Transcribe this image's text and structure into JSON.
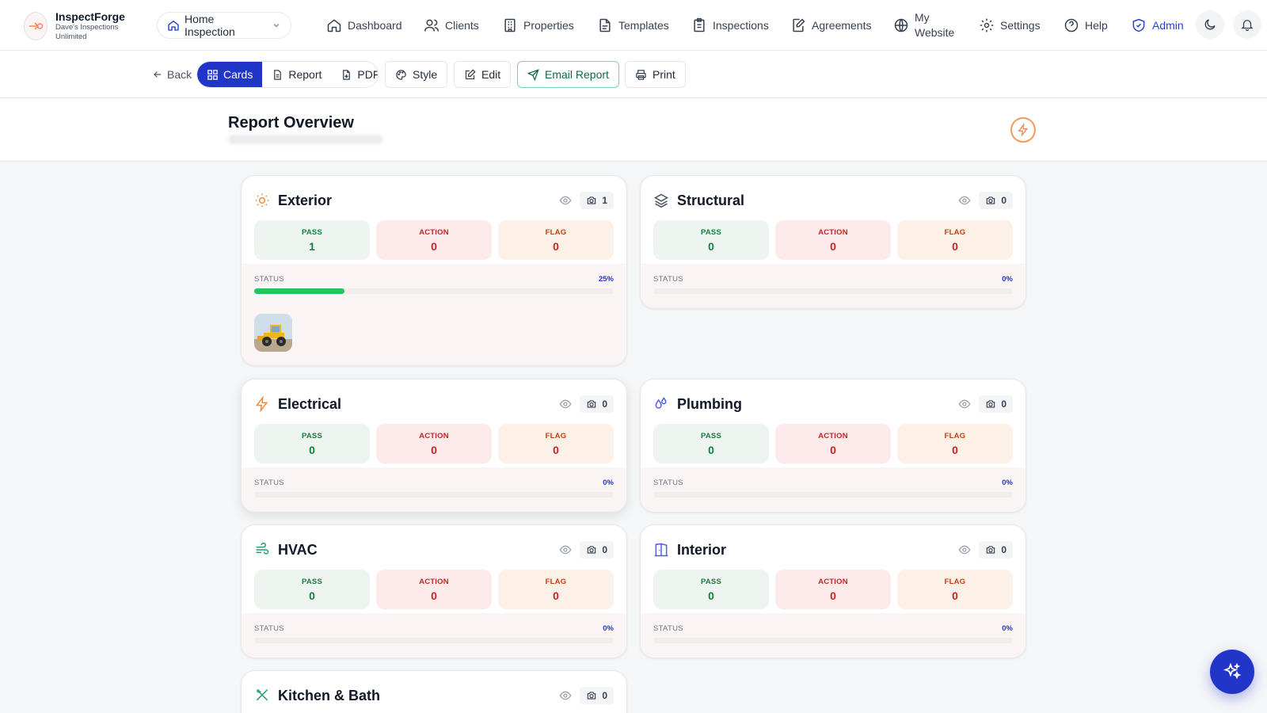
{
  "brand": {
    "name": "InspectForge",
    "subtitle": "Dave's Inspections Unlimited"
  },
  "scope_select": {
    "value": "Home Inspection"
  },
  "nav": {
    "dashboard": "Dashboard",
    "clients": "Clients",
    "properties": "Properties",
    "templates": "Templates",
    "inspections": "Inspections",
    "agreements": "Agreements",
    "my_website_line1": "My",
    "my_website_line2": "Website",
    "settings": "Settings",
    "help": "Help",
    "admin": "Admin"
  },
  "toolbar": {
    "back": "Back",
    "view_modes": {
      "cards": "Cards",
      "report": "Report",
      "pdf": "PDF"
    },
    "style": "Style",
    "edit": "Edit",
    "email_report": "Email Report",
    "print": "Print"
  },
  "overview": {
    "title": "Report Overview"
  },
  "labels": {
    "pass": "PASS",
    "action": "ACTION",
    "flag": "FLAG",
    "status": "STATUS"
  },
  "colors": {
    "primary": "#2135c9",
    "pass": "#15803d",
    "action": "#c42626",
    "flag": "#c2410c",
    "progress": "#22c55e"
  },
  "cards": [
    {
      "title": "Exterior",
      "icon": "sun-icon",
      "photos": "1",
      "pass": "1",
      "action": "0",
      "flag": "0",
      "status_pct": "25%",
      "progress": 0.25,
      "has_photo": true
    },
    {
      "title": "Structural",
      "icon": "layers-icon",
      "photos": "0",
      "pass": "0",
      "action": "0",
      "flag": "0",
      "status_pct": "0%",
      "progress": 0
    },
    {
      "title": "Electrical",
      "icon": "bolt-icon",
      "photos": "0",
      "pass": "0",
      "action": "0",
      "flag": "0",
      "status_pct": "0%",
      "progress": 0
    },
    {
      "title": "Plumbing",
      "icon": "droplets-icon",
      "photos": "0",
      "pass": "0",
      "action": "0",
      "flag": "0",
      "status_pct": "0%",
      "progress": 0
    },
    {
      "title": "HVAC",
      "icon": "wind-icon",
      "photos": "0",
      "pass": "0",
      "action": "0",
      "flag": "0",
      "status_pct": "0%",
      "progress": 0
    },
    {
      "title": "Interior",
      "icon": "door-icon",
      "photos": "0",
      "pass": "0",
      "action": "0",
      "flag": "0",
      "status_pct": "0%",
      "progress": 0
    },
    {
      "title": "Kitchen & Bath",
      "icon": "utensils-icon",
      "photos": "0"
    }
  ]
}
